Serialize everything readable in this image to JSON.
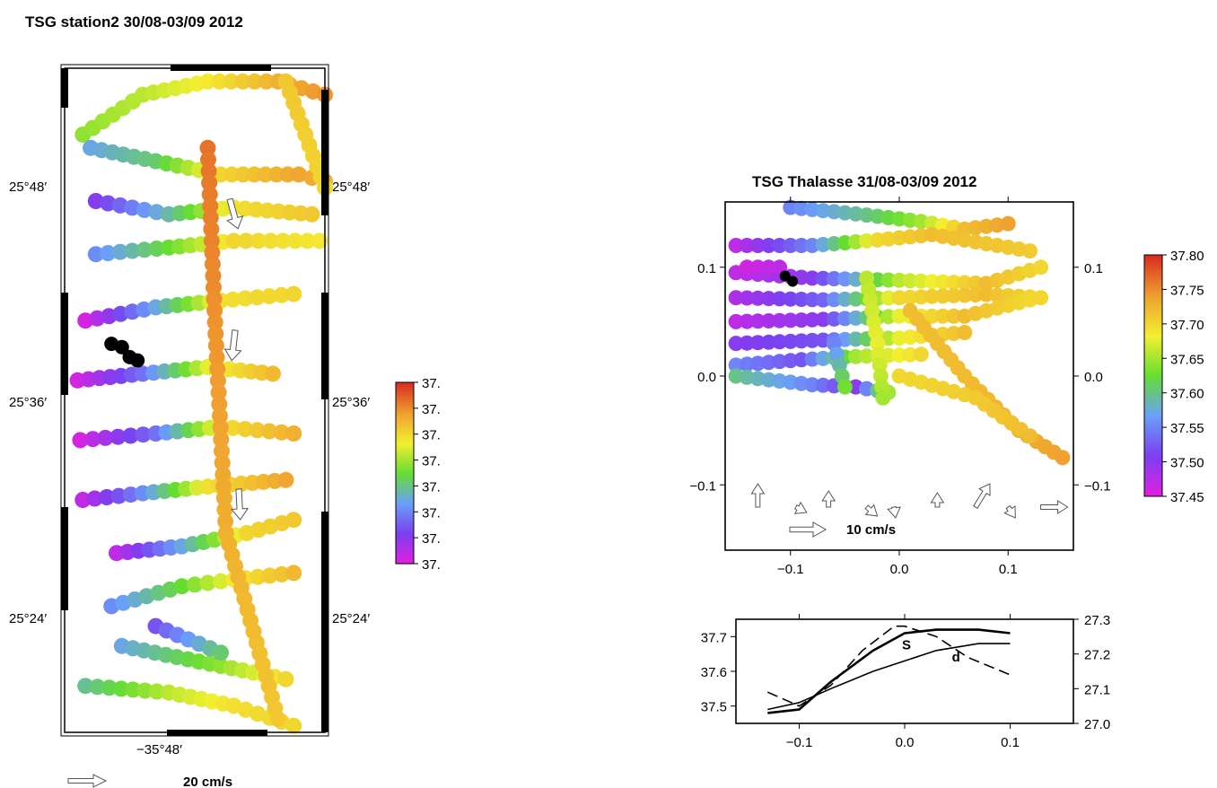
{
  "chart_data": [
    {
      "id": "station2",
      "type": "scatter",
      "title": "TSG station2 30/08-03/09 2012",
      "lat_ticks": [
        "25°48′",
        "25°36′",
        "25°24′"
      ],
      "lon_ticks": [
        "−35°48′"
      ],
      "colorbar": {
        "tick_labels": [
          "37.",
          "37.",
          "37.",
          "37.",
          "37.",
          "37.",
          "37.",
          "37."
        ]
      },
      "vector_scale_label": "20 cm/s",
      "arrows": [
        {
          "dx": 0.25,
          "dy": -0.9
        },
        {
          "dx": -0.1,
          "dy": -0.9
        },
        {
          "dx": 0.05,
          "dy": -1.0
        }
      ],
      "tracks": [
        {
          "pts": [
            [
              0.07,
              0.1
            ],
            [
              0.3,
              0.04
            ],
            [
              0.55,
              0.02
            ],
            [
              0.82,
              0.02
            ],
            [
              1.0,
              0.04
            ]
          ],
          "vals": [
            0.55,
            0.6,
            0.68,
            0.8,
            0.85
          ]
        },
        {
          "pts": [
            [
              0.1,
              0.12
            ],
            [
              0.35,
              0.14
            ],
            [
              0.6,
              0.16
            ],
            [
              0.9,
              0.16
            ],
            [
              1.0,
              0.17
            ]
          ],
          "vals": [
            0.35,
            0.45,
            0.72,
            0.82,
            0.8
          ]
        },
        {
          "pts": [
            [
              0.12,
              0.2
            ],
            [
              0.4,
              0.22
            ],
            [
              0.65,
              0.21
            ],
            [
              0.95,
              0.22
            ]
          ],
          "vals": [
            0.15,
            0.4,
            0.7,
            0.75
          ]
        },
        {
          "pts": [
            [
              0.12,
              0.28
            ],
            [
              0.4,
              0.27
            ],
            [
              0.65,
              0.26
            ],
            [
              0.98,
              0.26
            ]
          ],
          "vals": [
            0.3,
            0.5,
            0.72,
            0.68
          ]
        },
        {
          "pts": [
            [
              0.08,
              0.38
            ],
            [
              0.35,
              0.36
            ],
            [
              0.6,
              0.35
            ],
            [
              0.88,
              0.34
            ]
          ],
          "vals": [
            0.02,
            0.35,
            0.7,
            0.72
          ]
        },
        {
          "pts": [
            [
              0.05,
              0.47
            ],
            [
              0.3,
              0.46
            ],
            [
              0.55,
              0.45
            ],
            [
              0.8,
              0.46
            ]
          ],
          "vals": [
            0.02,
            0.25,
            0.65,
            0.78
          ]
        },
        {
          "pts": [
            [
              0.06,
              0.56
            ],
            [
              0.35,
              0.55
            ],
            [
              0.6,
              0.54
            ],
            [
              0.88,
              0.55
            ]
          ],
          "vals": [
            0.02,
            0.25,
            0.7,
            0.8
          ]
        },
        {
          "pts": [
            [
              0.07,
              0.65
            ],
            [
              0.3,
              0.64
            ],
            [
              0.55,
              0.63
            ],
            [
              0.85,
              0.62
            ]
          ],
          "vals": [
            0.05,
            0.3,
            0.7,
            0.82
          ]
        },
        {
          "pts": [
            [
              0.2,
              0.73
            ],
            [
              0.45,
              0.72
            ],
            [
              0.7,
              0.7
            ],
            [
              0.88,
              0.68
            ]
          ],
          "vals": [
            0.05,
            0.35,
            0.72,
            0.75
          ]
        },
        {
          "pts": [
            [
              0.18,
              0.81
            ],
            [
              0.45,
              0.78
            ],
            [
              0.65,
              0.77
            ],
            [
              0.88,
              0.76
            ]
          ],
          "vals": [
            0.3,
            0.5,
            0.68,
            0.78
          ]
        },
        {
          "pts": [
            [
              0.22,
              0.87
            ],
            [
              0.6,
              0.9
            ],
            [
              0.85,
              0.92
            ]
          ],
          "vals": [
            0.35,
            0.55,
            0.72
          ]
        },
        {
          "pts": [
            [
              0.08,
              0.93
            ],
            [
              0.4,
              0.94
            ],
            [
              0.65,
              0.96
            ],
            [
              0.88,
              0.99
            ]
          ],
          "vals": [
            0.42,
            0.6,
            0.7,
            0.72
          ]
        },
        {
          "pts": [
            [
              0.55,
              0.12
            ],
            [
              0.58,
              0.4
            ],
            [
              0.62,
              0.7
            ],
            [
              0.82,
              0.98
            ]
          ],
          "vals": [
            0.9,
            0.85,
            0.8,
            0.75
          ]
        },
        {
          "pts": [
            [
              0.85,
              0.02
            ],
            [
              1.0,
              0.18
            ]
          ],
          "vals": [
            0.75,
            0.72
          ]
        },
        {
          "pts": [
            [
              0.35,
              0.84
            ],
            [
              0.6,
              0.88
            ]
          ],
          "vals": [
            0.2,
            0.45
          ]
        }
      ],
      "missing": [
        [
          0.18,
          0.415
        ],
        [
          0.22,
          0.42
        ],
        [
          0.28,
          0.44
        ],
        [
          0.25,
          0.435
        ]
      ]
    },
    {
      "id": "thalasse",
      "type": "scatter",
      "title": "TSG Thalasse 31/08-03/09 2012",
      "xlim": [
        -0.16,
        0.16
      ],
      "ylim": [
        -0.16,
        0.16
      ],
      "x_ticks": [
        -0.1,
        0.0,
        0.1
      ],
      "y_ticks": [
        -0.1,
        0.0,
        0.1
      ],
      "x_tick_labels": [
        "−0.1",
        "0.0",
        "0.1"
      ],
      "y_tick_labels": [
        "−0.1",
        "0.0",
        "0.1"
      ],
      "colorbar": {
        "min": 37.45,
        "max": 37.8,
        "ticks": [
          37.45,
          37.5,
          37.55,
          37.6,
          37.65,
          37.7,
          37.75,
          37.8
        ],
        "tick_labels": [
          "37.45",
          "37.50",
          "37.55",
          "37.60",
          "37.65",
          "37.70",
          "37.75",
          "37.80"
        ]
      },
      "vector_scale_label": "10 cm/s",
      "arrows": [
        {
          "x": -0.13,
          "dx": 0.0,
          "dy": 0.026
        },
        {
          "x": -0.095,
          "dx": 0.012,
          "dy": -0.006
        },
        {
          "x": -0.065,
          "dx": 0.0,
          "dy": 0.018
        },
        {
          "x": -0.03,
          "dx": 0.012,
          "dy": -0.01
        },
        {
          "x": -0.005,
          "dx": 0.002,
          "dy": -0.012
        },
        {
          "x": 0.035,
          "dx": 0.0,
          "dy": 0.016
        },
        {
          "x": 0.07,
          "dx": 0.016,
          "dy": 0.026
        },
        {
          "x": 0.1,
          "dx": 0.008,
          "dy": -0.012
        },
        {
          "x": 0.13,
          "dx": 0.03,
          "dy": 0.0
        }
      ],
      "tracks": [
        {
          "pts": [
            [
              -0.1,
              0.155
            ],
            [
              -0.03,
              0.148
            ],
            [
              0.02,
              0.142
            ],
            [
              0.06,
              0.135
            ],
            [
              0.1,
              0.14
            ]
          ],
          "vals": [
            37.55,
            37.6,
            37.65,
            37.72,
            37.74
          ]
        },
        {
          "pts": [
            [
              -0.15,
              0.12
            ],
            [
              -0.08,
              0.12
            ],
            [
              -0.02,
              0.125
            ],
            [
              0.03,
              0.13
            ],
            [
              0.12,
              0.115
            ]
          ],
          "vals": [
            37.47,
            37.55,
            37.7,
            37.72,
            37.71
          ]
        },
        {
          "pts": [
            [
              -0.15,
              0.095
            ],
            [
              -0.08,
              0.09
            ],
            [
              0.0,
              0.088
            ],
            [
              0.08,
              0.085
            ],
            [
              0.13,
              0.1
            ]
          ],
          "vals": [
            37.47,
            37.5,
            37.66,
            37.72,
            37.7
          ]
        },
        {
          "pts": [
            [
              -0.15,
              0.072
            ],
            [
              -0.07,
              0.07
            ],
            [
              0.0,
              0.072
            ],
            [
              0.08,
              0.075
            ],
            [
              0.13,
              0.072
            ]
          ],
          "vals": [
            37.48,
            37.53,
            37.7,
            37.72,
            37.7
          ]
        },
        {
          "pts": [
            [
              -0.15,
              0.05
            ],
            [
              -0.07,
              0.052
            ],
            [
              0.0,
              0.055
            ],
            [
              0.06,
              0.055
            ],
            [
              0.12,
              0.07
            ]
          ],
          "vals": [
            37.47,
            37.5,
            37.68,
            37.72,
            37.7
          ]
        },
        {
          "pts": [
            [
              -0.15,
              0.03
            ],
            [
              -0.07,
              0.033
            ],
            [
              0.0,
              0.035
            ],
            [
              0.06,
              0.04
            ]
          ],
          "vals": [
            37.5,
            37.52,
            37.68,
            37.72
          ]
        },
        {
          "pts": [
            [
              -0.15,
              0.01
            ],
            [
              -0.09,
              0.015
            ],
            [
              -0.04,
              0.018
            ],
            [
              0.02,
              0.02
            ]
          ],
          "vals": [
            37.55,
            37.52,
            37.65,
            37.7
          ]
        },
        {
          "pts": [
            [
              -0.15,
              0.0
            ],
            [
              -0.08,
              -0.008
            ],
            [
              -0.04,
              -0.01
            ],
            [
              -0.01,
              -0.015
            ]
          ],
          "vals": [
            37.6,
            37.55,
            37.5,
            37.65
          ]
        },
        {
          "pts": [
            [
              -0.03,
              0.09
            ],
            [
              -0.02,
              0.03
            ],
            [
              -0.015,
              -0.02
            ]
          ],
          "vals": [
            37.66,
            37.68,
            37.65
          ]
        },
        {
          "pts": [
            [
              0.01,
              0.06
            ],
            [
              0.06,
              0.0
            ],
            [
              0.11,
              -0.05
            ],
            [
              0.15,
              -0.075
            ]
          ],
          "vals": [
            37.72,
            37.72,
            37.73,
            37.74
          ]
        },
        {
          "pts": [
            [
              0.0,
              0.0
            ],
            [
              0.07,
              -0.02
            ],
            [
              0.12,
              -0.055
            ]
          ],
          "vals": [
            37.7,
            37.71,
            37.72
          ]
        },
        {
          "pts": [
            [
              -0.06,
              0.03
            ],
            [
              -0.05,
              -0.01
            ]
          ],
          "vals": [
            37.55,
            37.63
          ]
        },
        {
          "pts": [
            [
              -0.14,
              0.1
            ],
            [
              -0.11,
              0.1
            ]
          ],
          "vals": [
            37.46,
            37.47
          ]
        }
      ],
      "missing": [
        [
          -0.105,
          0.092
        ],
        [
          -0.098,
          0.087
        ]
      ]
    },
    {
      "id": "profile",
      "type": "line",
      "xlim": [
        -0.16,
        0.16
      ],
      "x_ticks": [
        -0.1,
        0.0,
        0.1
      ],
      "x_tick_labels": [
        "−0.1",
        "0.0",
        "0.1"
      ],
      "left_ylim": [
        37.45,
        37.75
      ],
      "left_ticks": [
        37.5,
        37.6,
        37.7
      ],
      "left_tick_labels": [
        "37.5",
        "37.6",
        "37.7"
      ],
      "right_ylim": [
        27.0,
        27.3
      ],
      "right_ticks": [
        27.0,
        27.1,
        27.2,
        27.3
      ],
      "right_tick_labels": [
        "27.0",
        "27.1",
        "27.2",
        "27.3"
      ],
      "series": [
        {
          "name": "S",
          "axis": "left",
          "style": "thick",
          "x": [
            -0.13,
            -0.1,
            -0.07,
            -0.03,
            0.0,
            0.03,
            0.07,
            0.1
          ],
          "values": [
            37.48,
            37.49,
            37.57,
            37.66,
            37.71,
            37.72,
            37.72,
            37.71
          ]
        },
        {
          "name": "d",
          "axis": "right",
          "style": "thin",
          "x": [
            -0.13,
            -0.1,
            -0.07,
            -0.03,
            0.0,
            0.03,
            0.07,
            0.1
          ],
          "values": [
            27.04,
            27.06,
            27.1,
            27.15,
            27.18,
            27.21,
            27.23,
            27.23
          ]
        },
        {
          "name": "",
          "axis": "left",
          "style": "dashed",
          "x": [
            -0.13,
            -0.1,
            -0.07,
            -0.04,
            -0.01,
            0.0,
            0.03,
            0.06,
            0.1
          ],
          "values": [
            37.54,
            37.5,
            37.56,
            37.66,
            37.73,
            37.73,
            37.7,
            37.64,
            37.59
          ]
        }
      ]
    }
  ]
}
